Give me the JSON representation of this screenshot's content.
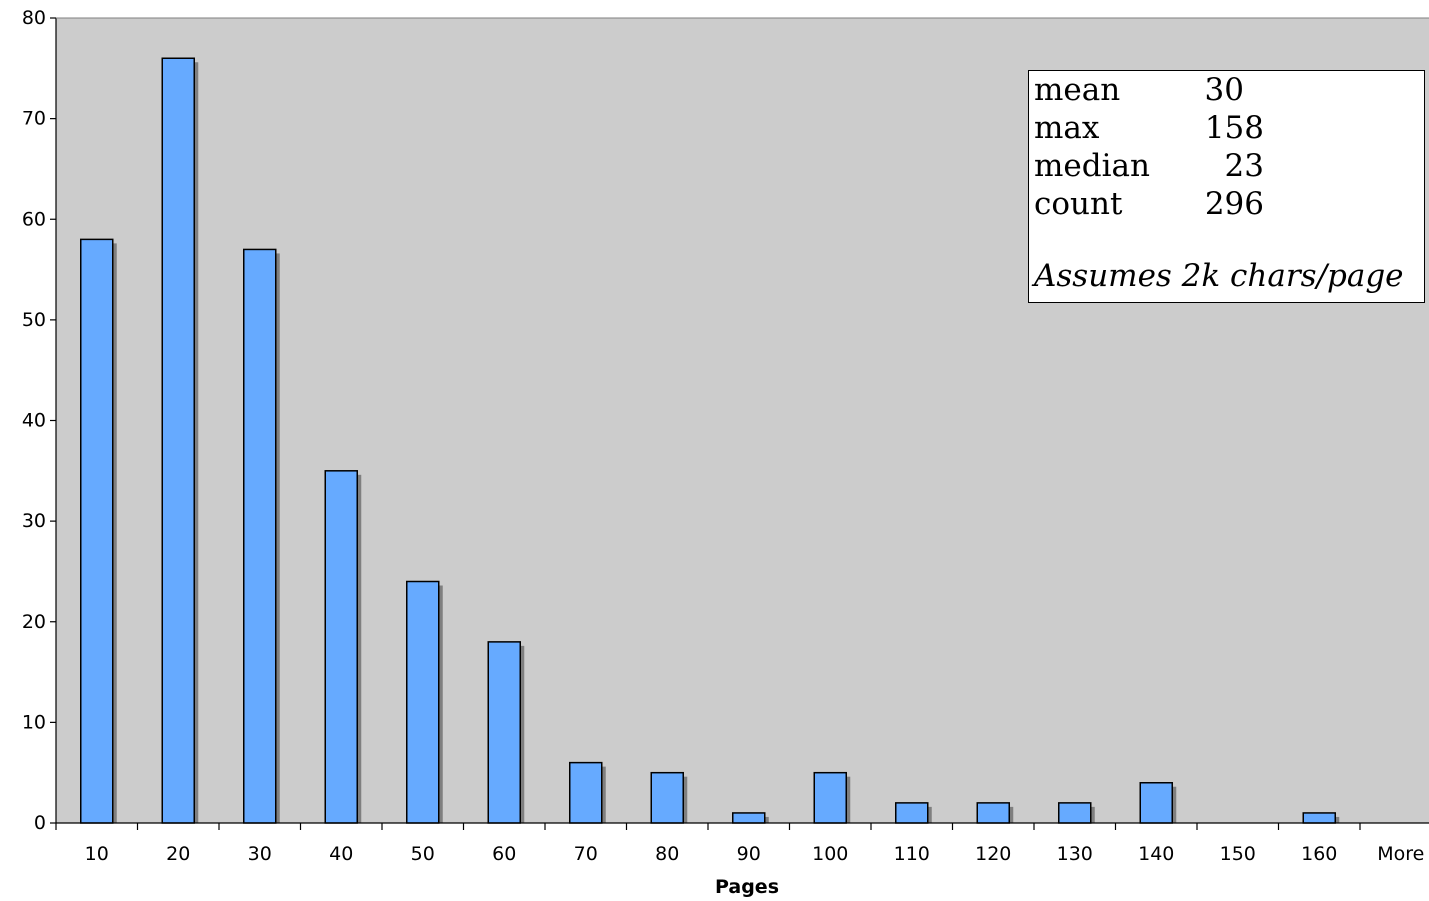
{
  "chart_data": {
    "type": "bar",
    "categories": [
      "10",
      "20",
      "30",
      "40",
      "50",
      "60",
      "70",
      "80",
      "90",
      "100",
      "110",
      "120",
      "130",
      "140",
      "150",
      "160",
      "More"
    ],
    "values": [
      58,
      76,
      57,
      35,
      24,
      18,
      6,
      5,
      1,
      5,
      2,
      2,
      2,
      4,
      0,
      1,
      0
    ],
    "title": "",
    "xlabel": "Pages",
    "ylabel": "",
    "ylim": [
      0,
      80
    ],
    "yticks": [
      0,
      10,
      20,
      30,
      40,
      50,
      60,
      70,
      80
    ],
    "grid": false,
    "colors": {
      "bar": "#66aaff",
      "bar_shadow": "#7f7f7f",
      "plot_background": "#cccccc",
      "axis": "#000000"
    },
    "annotation": {
      "placement": "top-right",
      "stats": [
        {
          "label": "mean",
          "value": "30"
        },
        {
          "label": "max",
          "value": "158"
        },
        {
          "label": "median",
          "value": "23"
        },
        {
          "label": "count",
          "value": "296"
        }
      ],
      "note": "Assumes 2k chars/page"
    }
  }
}
